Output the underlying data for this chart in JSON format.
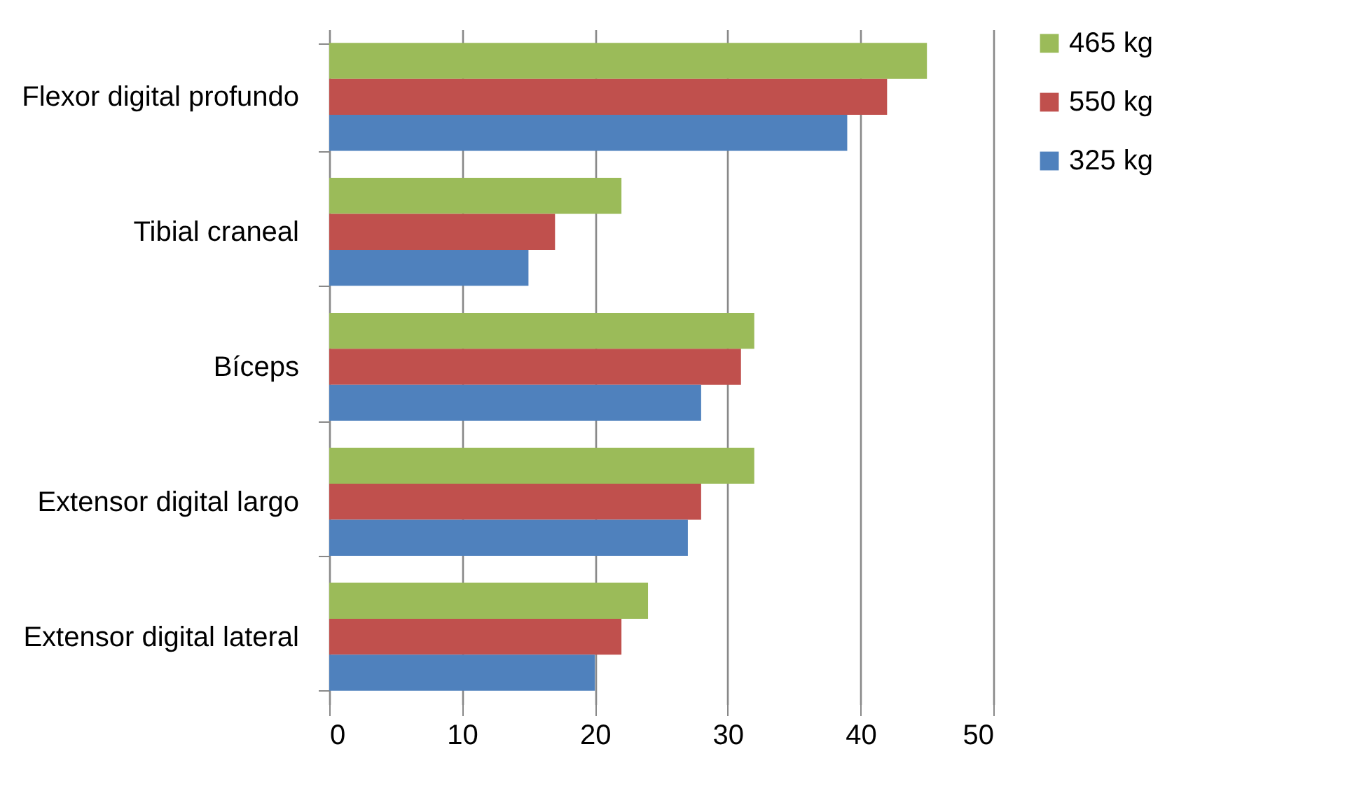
{
  "chart_data": {
    "type": "bar",
    "orientation": "horizontal",
    "categories": [
      "Flexor digital profundo",
      "Tibial craneal",
      "Bíceps",
      "Extensor digital largo",
      "Extensor digital lateral"
    ],
    "series": [
      {
        "name": "465 kg",
        "color": "#9bbb59",
        "values": [
          45,
          22,
          32,
          32,
          24
        ]
      },
      {
        "name": "550 kg",
        "color": "#c0504d",
        "values": [
          42,
          17,
          31,
          28,
          22
        ]
      },
      {
        "name": "325 kg",
        "color": "#4f81bd",
        "values": [
          39,
          15,
          28,
          27,
          20
        ]
      }
    ],
    "xlim": [
      0,
      50
    ],
    "xticks": [
      0,
      10,
      20,
      30,
      40,
      50
    ],
    "grid": "x",
    "legend": "right"
  }
}
